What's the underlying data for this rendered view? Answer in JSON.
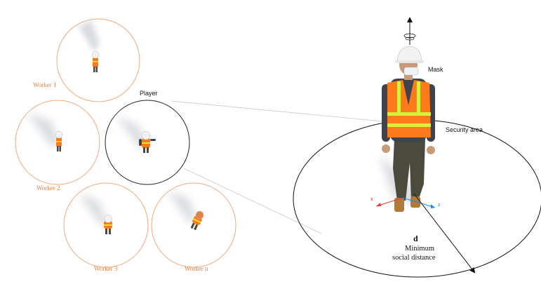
{
  "workers": [
    {
      "label": "Worker 1"
    },
    {
      "label": "Worker 2"
    },
    {
      "label": "Worker 3"
    },
    {
      "label": "Worker n"
    }
  ],
  "player": {
    "label": "Player"
  },
  "annotations": {
    "mask": "Mask",
    "security_area": "Security area",
    "distance_symbol": "d",
    "distance_line1": "Minimum",
    "distance_line2": "social distance"
  },
  "axes": {
    "x": "x",
    "z": "z"
  },
  "colors": {
    "worker_ring": "#f2a97c",
    "worker_label": "#e8813f",
    "vest": "#ff7a1a",
    "reflective": "#d8f03c",
    "helmet": "#f2f2f2",
    "pants": "#4b4a3c",
    "shirt": "#3f434b",
    "skin": "#c79a7a",
    "boots": "#b07a3a",
    "shadow": "#d9dbe0"
  }
}
